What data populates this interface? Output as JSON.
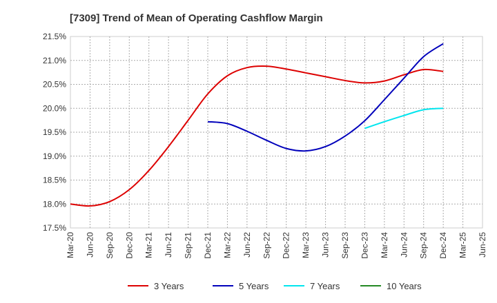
{
  "chart_data": {
    "type": "line",
    "title": "[7309]  Trend of Mean of Operating Cashflow Margin",
    "xlabel": "",
    "ylabel": "",
    "x": [
      "Mar-20",
      "Jun-20",
      "Sep-20",
      "Dec-20",
      "Mar-21",
      "Jun-21",
      "Sep-21",
      "Dec-21",
      "Mar-22",
      "Jun-22",
      "Sep-22",
      "Dec-22",
      "Mar-23",
      "Jun-23",
      "Sep-23",
      "Dec-23",
      "Mar-24",
      "Jun-24",
      "Sep-24",
      "Dec-24",
      "Mar-25",
      "Jun-25"
    ],
    "ylim": [
      17.5,
      21.5
    ],
    "yticks": [
      17.5,
      18.0,
      18.5,
      19.0,
      19.5,
      20.0,
      20.5,
      21.0,
      21.5
    ],
    "ytick_labels": [
      "17.5%",
      "18.0%",
      "18.5%",
      "19.0%",
      "19.5%",
      "20.0%",
      "20.5%",
      "21.0%",
      "21.5%"
    ],
    "grid": true,
    "legend_position": "bottom",
    "series": [
      {
        "name": "3 Years",
        "color": "#dd0000",
        "values": [
          18.0,
          17.96,
          18.05,
          18.3,
          18.7,
          19.2,
          19.75,
          20.3,
          20.68,
          20.85,
          20.88,
          20.82,
          20.74,
          20.66,
          20.58,
          20.53,
          20.57,
          20.7,
          20.81,
          20.77,
          null,
          null
        ]
      },
      {
        "name": "5 Years",
        "color": "#0000bb",
        "values": [
          null,
          null,
          null,
          null,
          null,
          null,
          null,
          19.72,
          19.68,
          19.52,
          19.33,
          19.16,
          19.11,
          19.2,
          19.42,
          19.74,
          20.18,
          20.63,
          21.08,
          21.35,
          null,
          null
        ]
      },
      {
        "name": "7 Years",
        "color": "#00e5ee",
        "values": [
          null,
          null,
          null,
          null,
          null,
          null,
          null,
          null,
          null,
          null,
          null,
          null,
          null,
          null,
          null,
          19.58,
          19.72,
          19.85,
          19.97,
          20.0,
          null,
          null
        ]
      },
      {
        "name": "10 Years",
        "color": "#228822",
        "values": [
          null,
          null,
          null,
          null,
          null,
          null,
          null,
          null,
          null,
          null,
          null,
          null,
          null,
          null,
          null,
          null,
          null,
          null,
          null,
          null,
          null,
          null
        ]
      }
    ]
  }
}
